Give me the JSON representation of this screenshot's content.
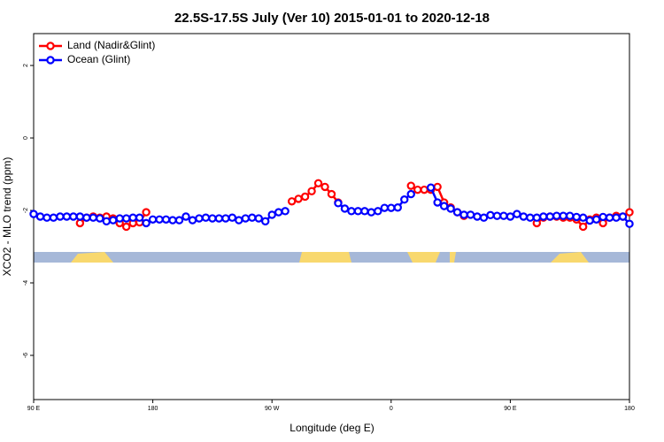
{
  "chart_data": {
    "type": "line",
    "title": "22.5S-17.5S July (Ver 10)   2015-01-01 to 2020-12-18",
    "x_label": "Longitude (deg E)",
    "y_label": "XCO2 - MLO trend (ppm)",
    "x": [
      90,
      95,
      100,
      105,
      110,
      115,
      120,
      125,
      130,
      135,
      140,
      145,
      150,
      155,
      160,
      165,
      170,
      175,
      180,
      185,
      190,
      195,
      200,
      205,
      210,
      215,
      220,
      225,
      230,
      235,
      240,
      245,
      250,
      255,
      260,
      265,
      270,
      275,
      280,
      285,
      290,
      295,
      300,
      305,
      310,
      315,
      320,
      325,
      330,
      335,
      340,
      345,
      350,
      355,
      360,
      365,
      370,
      375,
      380,
      385,
      390,
      395,
      400,
      405,
      410,
      415,
      420,
      425,
      430,
      435,
      440,
      445,
      450,
      455,
      460,
      465,
      470,
      475,
      480,
      485,
      490,
      495,
      500,
      505,
      510,
      515,
      520,
      525,
      530,
      535,
      540
    ],
    "series": [
      {
        "name": "Land (Nadir&Glint)",
        "color": "#ff0000",
        "values": [
          null,
          null,
          null,
          null,
          null,
          null,
          null,
          -2.35,
          -2.2,
          -2.17,
          -2.2,
          -2.17,
          -2.22,
          -2.35,
          -2.45,
          -2.35,
          -2.33,
          -2.05,
          null,
          null,
          null,
          null,
          null,
          null,
          null,
          null,
          null,
          null,
          null,
          null,
          null,
          null,
          null,
          null,
          null,
          null,
          null,
          null,
          null,
          -1.75,
          -1.68,
          -1.62,
          -1.47,
          -1.25,
          -1.35,
          -1.55,
          -1.78,
          null,
          null,
          null,
          null,
          null,
          null,
          null,
          null,
          null,
          null,
          -1.32,
          -1.43,
          -1.43,
          -1.43,
          -1.35,
          -1.78,
          -1.92,
          -2.05,
          -2.15,
          null,
          null,
          null,
          null,
          null,
          null,
          null,
          null,
          null,
          null,
          -2.35,
          -2.2,
          -2.17,
          -2.17,
          -2.2,
          -2.2,
          -2.25,
          -2.45,
          -2.25,
          -2.2,
          -2.35,
          -2.2,
          -2.15,
          -2.17,
          -2.05
        ]
      },
      {
        "name": "Ocean (Glint)",
        "color": "#0000ff",
        "values": [
          -2.1,
          -2.17,
          -2.2,
          -2.2,
          -2.17,
          -2.17,
          -2.17,
          -2.17,
          -2.2,
          -2.2,
          -2.22,
          -2.3,
          -2.27,
          -2.22,
          -2.22,
          -2.2,
          -2.2,
          -2.35,
          -2.25,
          -2.25,
          -2.25,
          -2.27,
          -2.27,
          -2.17,
          -2.27,
          -2.22,
          -2.2,
          -2.22,
          -2.22,
          -2.22,
          -2.2,
          -2.27,
          -2.22,
          -2.2,
          -2.22,
          -2.3,
          -2.12,
          -2.05,
          -2.02,
          null,
          null,
          null,
          null,
          null,
          null,
          null,
          -1.8,
          -1.95,
          -2.02,
          -2.02,
          -2.02,
          -2.05,
          -2.02,
          -1.93,
          -1.93,
          -1.92,
          -1.7,
          -1.55,
          null,
          null,
          -1.37,
          -1.78,
          -1.88,
          -1.95,
          -2.05,
          -2.12,
          -2.12,
          -2.17,
          -2.2,
          -2.13,
          -2.15,
          -2.15,
          -2.17,
          -2.1,
          -2.17,
          -2.2,
          -2.2,
          -2.17,
          -2.17,
          -2.15,
          -2.15,
          -2.15,
          -2.18,
          -2.2,
          -2.28,
          -2.25,
          -2.18,
          -2.2,
          -2.2,
          -2.17,
          -2.37
        ]
      }
    ],
    "xlim": [
      90,
      540
    ],
    "ylim": [
      -7.22,
      2.88
    ],
    "xticks": [
      {
        "value": 90,
        "label": "90 E"
      },
      180,
      {
        "value": 270,
        "label": "90 W"
      },
      {
        "value": 360,
        "label": "0"
      },
      {
        "value": 450,
        "label": "90 E"
      },
      {
        "value": 540,
        "label": "180"
      }
    ],
    "yticks": [
      2,
      0,
      -2,
      -4,
      -6
    ],
    "legend": "top-left"
  }
}
